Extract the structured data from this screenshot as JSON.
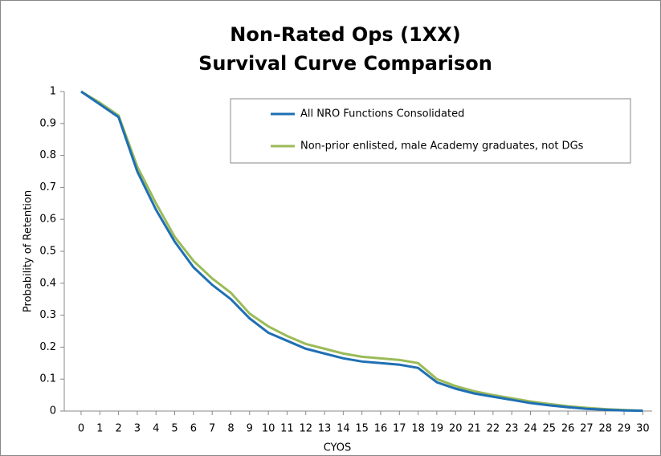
{
  "chart_data": {
    "type": "line",
    "title": [
      "Non-Rated Ops (1XX)",
      "Survival Curve Comparison"
    ],
    "xlabel": "CYOS",
    "ylabel": "Probability of Retention",
    "x": [
      0,
      1,
      2,
      3,
      4,
      5,
      6,
      7,
      8,
      9,
      10,
      11,
      12,
      13,
      14,
      15,
      16,
      17,
      18,
      19,
      20,
      21,
      22,
      23,
      24,
      25,
      26,
      27,
      28,
      29,
      30
    ],
    "series": [
      {
        "name": "All NRO Functions Consolidated",
        "color": "#1f6fb4",
        "values": [
          1,
          0.96,
          0.92,
          0.75,
          0.63,
          0.53,
          0.45,
          0.395,
          0.35,
          0.29,
          0.245,
          0.22,
          0.195,
          0.18,
          0.165,
          0.155,
          0.15,
          0.145,
          0.135,
          0.09,
          0.07,
          0.055,
          0.045,
          0.035,
          0.025,
          0.018,
          0.012,
          0.007,
          0.004,
          0.002,
          0.001
        ]
      },
      {
        "name": "Non-prior enlisted, male Academy graduates, not DGs",
        "color": "#9bbb59",
        "values": [
          1,
          0.965,
          0.925,
          0.765,
          0.65,
          0.545,
          0.47,
          0.415,
          0.37,
          0.305,
          0.265,
          0.235,
          0.21,
          0.195,
          0.18,
          0.17,
          0.165,
          0.16,
          0.15,
          0.1,
          0.078,
          0.062,
          0.05,
          0.04,
          0.03,
          0.022,
          0.015,
          0.01,
          0.006,
          0.003,
          0.001
        ]
      }
    ],
    "xlim": [
      -0.9,
      30.5
    ],
    "xticks": [
      0,
      1,
      2,
      3,
      4,
      5,
      6,
      7,
      8,
      9,
      10,
      11,
      12,
      13,
      14,
      15,
      16,
      17,
      18,
      19,
      20,
      21,
      22,
      23,
      24,
      25,
      26,
      27,
      28,
      29,
      30
    ],
    "ylim": [
      0,
      1
    ],
    "yticks": [
      0,
      0.1,
      0.2,
      0.3,
      0.4,
      0.5,
      0.6,
      0.7,
      0.8,
      0.9,
      1
    ],
    "grid": false,
    "legend": "upper right"
  }
}
